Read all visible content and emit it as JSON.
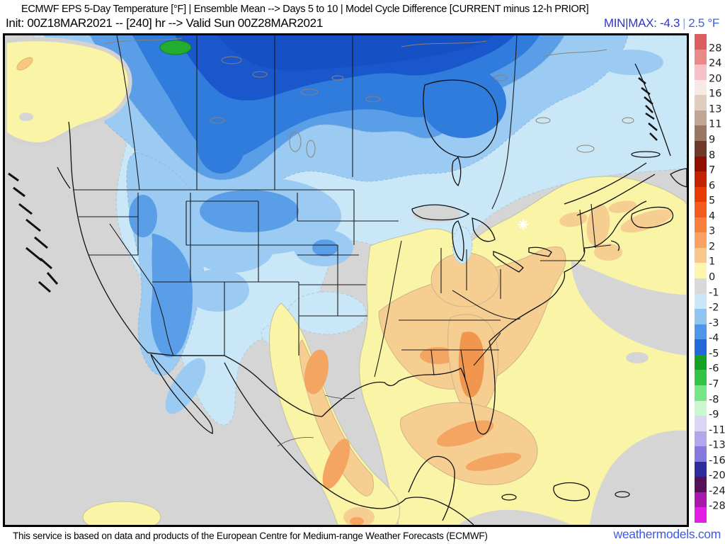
{
  "header": {
    "title": "ECMWF EPS 5-Day Temperature [°F] | Ensemble Mean --> Days 5 to 10 | Model Cycle Difference [CURRENT minus 12-h PRIOR]",
    "subtitle": "Init: 00Z18MAR2021 -- [240] hr --> Valid Sun 00Z28MAR2021",
    "stats": {
      "label": "MIN|MAX:",
      "min": "-4.3",
      "divider": "|",
      "max": "2.5 °F"
    }
  },
  "colorbar": {
    "labels": [
      "28",
      "24",
      "20",
      "16",
      "13",
      "11",
      "9",
      "8",
      "7",
      "6",
      "5",
      "4",
      "3",
      "2",
      "1",
      "0",
      "-1",
      "-2",
      "-3",
      "-4",
      "-5",
      "-6",
      "-7",
      "-8",
      "-9",
      "-11",
      "-13",
      "-16",
      "-20",
      "-24",
      "-28"
    ],
    "segment_colors": [
      "#DC5E5E",
      "#E98989",
      "#F6C2C6",
      "#F6EAE6",
      "#DFCDC0",
      "#C2A595",
      "#9A7763",
      "#6E3B2B",
      "#8F1000",
      "#C22400",
      "#E63C00",
      "#F25C1C",
      "#F8803C",
      "#F9A262",
      "#FAC68C",
      "#FAF6AE",
      "#D9D9D9",
      "#C9E7F7",
      "#8FC3F0",
      "#4E96E8",
      "#2268D8",
      "#13A223",
      "#33C447",
      "#74E683",
      "#C9F7D2",
      "#DCD4F4",
      "#B2A6EC",
      "#8678DC",
      "#2F2D9E",
      "#551058",
      "#A918AE",
      "#E41DE4"
    ]
  },
  "map": {
    "ocean_neutral": "#D5D5D5",
    "shade_levels": {
      "pale_cyan": "#C9E7F7",
      "light_blue": "#9BCBF2",
      "medium_blue": "#5B9EE8",
      "strong_blue": "#2F7CDC",
      "deep_blue": "#1B57CC",
      "darkest_blue": "#1550C5",
      "green": "#23AC30",
      "pale_yellow": "#FAF4A6",
      "pale_orange": "#F7CE92",
      "orange": "#F3A561",
      "deep_orange": "#F0964E"
    },
    "border_color": "#1B1B1B"
  },
  "footer": {
    "attribution": "This service is based on data and products of the European Centre for Medium-range Weather Forecasts (ECMWF)",
    "brand": "weathermodels.com",
    "brand_color": "#3C5BE0"
  }
}
